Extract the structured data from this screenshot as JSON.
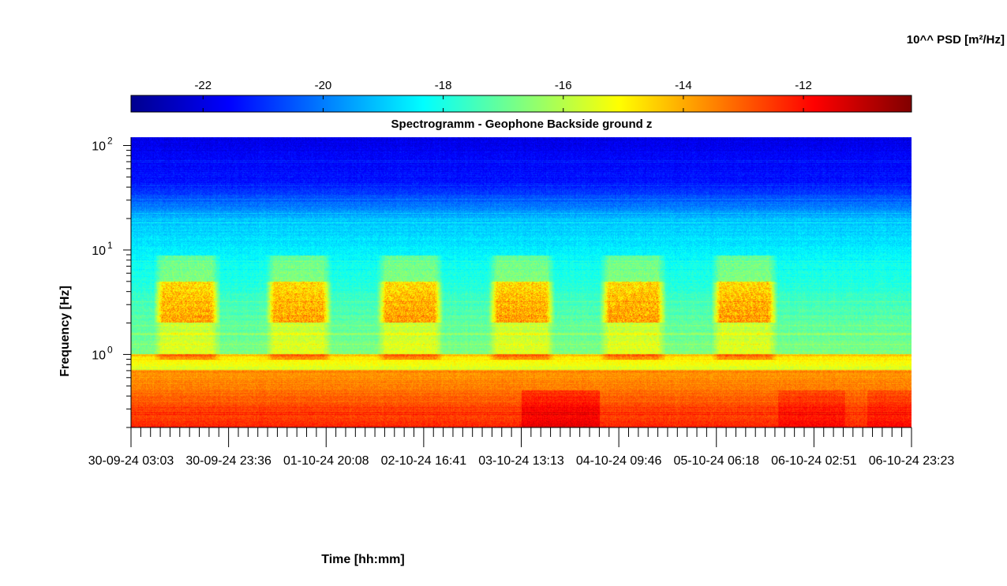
{
  "chart_data": {
    "type": "heatmap",
    "title": "Spectrogramm - Geophone Backside ground z",
    "xlabel": "Time [hh:mm]",
    "ylabel": "Frequency [Hz]",
    "y_scale": "log",
    "ylim": [
      0.2,
      120
    ],
    "y_ticks": [
      {
        "value": 0.2,
        "label": ""
      },
      {
        "value": 1,
        "label": "10",
        "exp": "0"
      },
      {
        "value": 10,
        "label": "10",
        "exp": "1"
      },
      {
        "value": 100,
        "label": "10",
        "exp": "2"
      }
    ],
    "x_ticks": [
      "30-09-24 03:03",
      "30-09-24 23:36",
      "01-10-24 20:08",
      "02-10-24 16:41",
      "03-10-24 13:13",
      "04-10-24 09:46",
      "05-10-24 06:18",
      "06-10-24 02:51",
      "06-10-24 23:23"
    ],
    "colorbar": {
      "label": "10^^ PSD [m²/Hz]",
      "colormap": "jet",
      "range": [
        -23.2,
        -10.2
      ],
      "ticks": [
        -22,
        -20,
        -18,
        -16,
        -14,
        -12
      ]
    },
    "daytime_activity_bursts": {
      "frequency_band_hz": [
        2,
        5
      ],
      "centers_days": [
        0.5,
        1.5,
        2.5,
        3.5,
        4.5,
        5.5
      ]
    },
    "total_days": 7
  }
}
